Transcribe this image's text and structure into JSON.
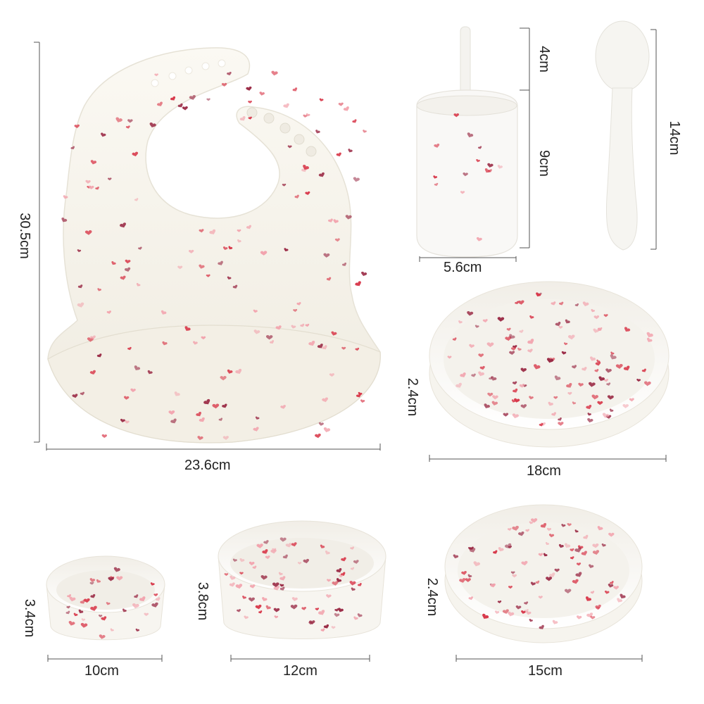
{
  "colors": {
    "silicone": "#f7f4ec",
    "silicone_shadow": "#e9e5da",
    "heart_red": "#d8384a",
    "heart_wine": "#9a2a45",
    "heart_pink": "#f2a3ad",
    "dimension_line": "#555555"
  },
  "products": {
    "bib": {
      "width": "23.6cm",
      "height": "30.5cm"
    },
    "cup": {
      "straw": "4cm",
      "body": "9cm",
      "diameter": "5.6cm"
    },
    "spoon": {
      "length": "14cm"
    },
    "plate_large": {
      "height": "2.4cm",
      "diameter": "18cm"
    },
    "bowl_small": {
      "height": "3.4cm",
      "diameter": "10cm"
    },
    "bowl_medium": {
      "height": "3.8cm",
      "diameter": "12cm"
    },
    "plate_medium": {
      "height": "2.4cm",
      "diameter": "15cm"
    }
  }
}
